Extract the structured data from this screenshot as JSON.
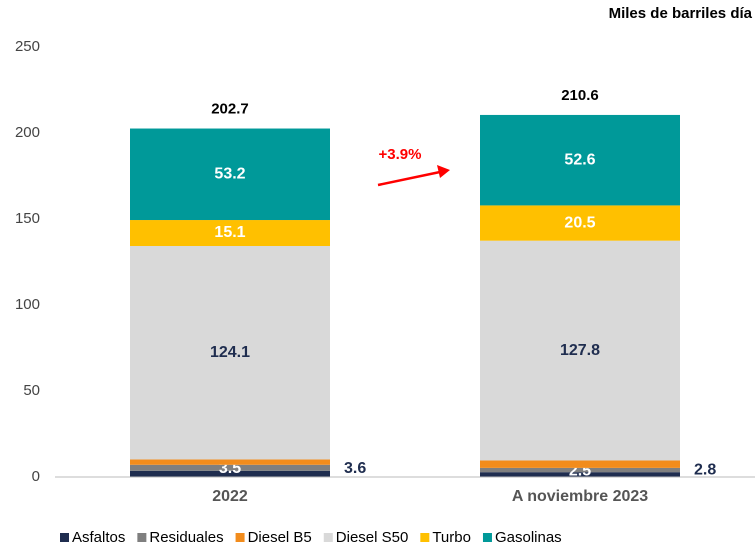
{
  "chart_data": {
    "type": "stacked_bar",
    "unit_label": "Miles de barriles día",
    "categories": [
      "2022",
      "A noviembre 2023"
    ],
    "series": [
      {
        "name": "Asfaltos",
        "color": "#1f2d4f",
        "values": [
          3.6,
          2.8
        ]
      },
      {
        "name": "Residuales",
        "color": "#7f7f7f",
        "values": [
          3.5,
          2.5
        ]
      },
      {
        "name": "Diesel B5",
        "color": "#f28c1c",
        "values": [
          3.1,
          4.3
        ]
      },
      {
        "name": "Diesel S50",
        "color": "#d9d9d9",
        "values": [
          124.1,
          127.8
        ]
      },
      {
        "name": "Turbo",
        "color": "#ffc000",
        "values": [
          15.1,
          20.5
        ]
      },
      {
        "name": "Gasolinas",
        "color": "#009999",
        "values": [
          53.2,
          52.6
        ]
      }
    ],
    "totals": [
      202.7,
      210.6
    ],
    "annotation": "+3.9%",
    "ylim": [
      0,
      250
    ],
    "yticks": [
      0,
      50,
      100,
      150,
      200,
      250
    ],
    "grid": false
  }
}
